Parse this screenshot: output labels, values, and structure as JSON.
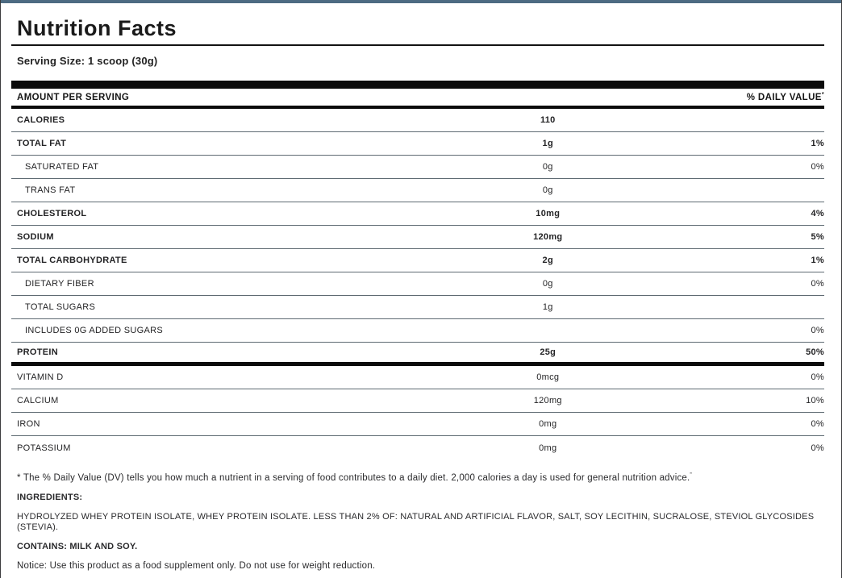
{
  "page": {
    "top_bar_color": "#4d6b82",
    "background_color": "#ffffff",
    "edge_border_color": "#3c3c3e"
  },
  "header": {
    "title": "Nutrition Facts",
    "serving_size": "Serving Size: 1 scoop (30g)"
  },
  "table": {
    "amount_header": "AMOUNT PER SERVING",
    "dv_header": "% DAILY VALUE",
    "dv_header_sup": "*",
    "rows": [
      {
        "label": "CALORIES",
        "amount": "110",
        "dv": "",
        "style": "bold"
      },
      {
        "label": "TOTAL FAT",
        "amount": "1g",
        "dv": "1%",
        "style": "bold"
      },
      {
        "label": "SATURATED FAT",
        "amount": "0g",
        "dv": "0%",
        "style": "indent"
      },
      {
        "label": "TRANS FAT",
        "amount": "0g",
        "dv": "",
        "style": "indent"
      },
      {
        "label": "CHOLESTEROL",
        "amount": "10mg",
        "dv": "4%",
        "style": "bold"
      },
      {
        "label": "SODIUM",
        "amount": "120mg",
        "dv": "5%",
        "style": "bold"
      },
      {
        "label": "TOTAL CARBOHYDRATE",
        "amount": "2g",
        "dv": "1%",
        "style": "bold"
      },
      {
        "label": "DIETARY FIBER",
        "amount": "0g",
        "dv": "0%",
        "style": "indent"
      },
      {
        "label": "TOTAL SUGARS",
        "amount": "1g",
        "dv": "",
        "style": "indent"
      },
      {
        "label": "INCLUDES 0G ADDED SUGARS",
        "amount": "",
        "dv": "0%",
        "style": "indent"
      },
      {
        "label": "PROTEIN",
        "amount": "25g",
        "dv": "50%",
        "style": "bold thick-bottom"
      },
      {
        "label": "VITAMIN D",
        "amount": "0mcg",
        "dv": "0%",
        "style": "plain"
      },
      {
        "label": "CALCIUM",
        "amount": "120mg",
        "dv": "10%",
        "style": "plain"
      },
      {
        "label": "IRON",
        "amount": "0mg",
        "dv": "0%",
        "style": "plain"
      },
      {
        "label": "POTASSIUM",
        "amount": "0mg",
        "dv": "0%",
        "style": "plain last"
      }
    ]
  },
  "footer": {
    "daily_value_note": "* The % Daily Value (DV) tells you how much a nutrient in a serving of food contributes to a daily diet. 2,000 calories a day is used for general nutrition advice.",
    "daily_value_note_sup": "”",
    "ingredients_label": "INGREDIENTS:",
    "ingredients_text": "HYDROLYZED WHEY PROTEIN ISOLATE, WHEY PROTEIN ISOLATE. LESS THAN 2% OF: NATURAL AND ARTIFICIAL FLAVOR, SALT, SOY LECITHIN, SUCRALOSE, STEVIOL GLYCOSIDES (STEVIA).",
    "contains_text": "CONTAINS: MILK AND SOY.",
    "notice_text": "Notice: Use this product as a food supplement only. Do not use for weight reduction."
  }
}
